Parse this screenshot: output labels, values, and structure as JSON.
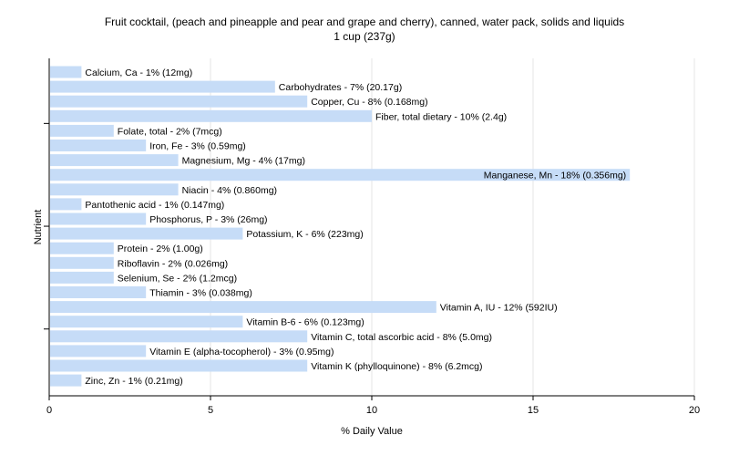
{
  "chart_data": {
    "type": "bar",
    "orientation": "horizontal",
    "title": "Fruit cocktail, (peach and pineapple and pear and grape and cherry), canned, water pack, solids and liquids",
    "subtitle": "1 cup (237g)",
    "xlabel": "% Daily Value",
    "ylabel": "Nutrient",
    "xlim": [
      0,
      20
    ],
    "x_ticks": [
      "0",
      "5",
      "10",
      "15",
      "20"
    ],
    "grid": true,
    "bar_color": "#c6dcf7",
    "grid_color": "#e6e6e6",
    "axis_color": "#000000",
    "categories": [
      "Calcium, Ca",
      "Carbohydrates",
      "Copper, Cu",
      "Fiber, total dietary",
      "Folate, total",
      "Iron, Fe",
      "Magnesium, Mg",
      "Manganese, Mn",
      "Niacin",
      "Pantothenic acid",
      "Phosphorus, P",
      "Potassium, K",
      "Protein",
      "Riboflavin",
      "Selenium, Se",
      "Thiamin",
      "Vitamin A, IU",
      "Vitamin B-6",
      "Vitamin C, total ascorbic acid",
      "Vitamin E (alpha-tocopherol)",
      "Vitamin K (phylloquinone)",
      "Zinc, Zn"
    ],
    "values": [
      1,
      7,
      8,
      10,
      2,
      3,
      4,
      18,
      4,
      1,
      3,
      6,
      2,
      2,
      2,
      3,
      12,
      6,
      8,
      3,
      8,
      1
    ],
    "labels": [
      "Calcium, Ca - 1% (12mg)",
      "Carbohydrates - 7% (20.17g)",
      "Copper, Cu - 8% (0.168mg)",
      "Fiber, total dietary - 10% (2.4g)",
      "Folate, total - 2% (7mcg)",
      "Iron, Fe - 3% (0.59mg)",
      "Magnesium, Mg - 4% (17mg)",
      "Manganese, Mn - 18% (0.356mg)",
      "Niacin - 4% (0.860mg)",
      "Pantothenic acid - 1% (0.147mg)",
      "Phosphorus, P - 3% (26mg)",
      "Potassium, K - 6% (223mg)",
      "Protein - 2% (1.00g)",
      "Riboflavin - 2% (0.026mg)",
      "Selenium, Se - 2% (1.2mcg)",
      "Thiamin - 3% (0.038mg)",
      "Vitamin A, IU - 12% (592IU)",
      "Vitamin B-6 - 6% (0.123mg)",
      "Vitamin C, total ascorbic acid - 8% (5.0mg)",
      "Vitamin E (alpha-tocopherol) - 3% (0.95mg)",
      "Vitamin K (phylloquinone) - 8% (6.2mcg)",
      "Zinc, Zn - 1% (0.21mg)"
    ]
  }
}
